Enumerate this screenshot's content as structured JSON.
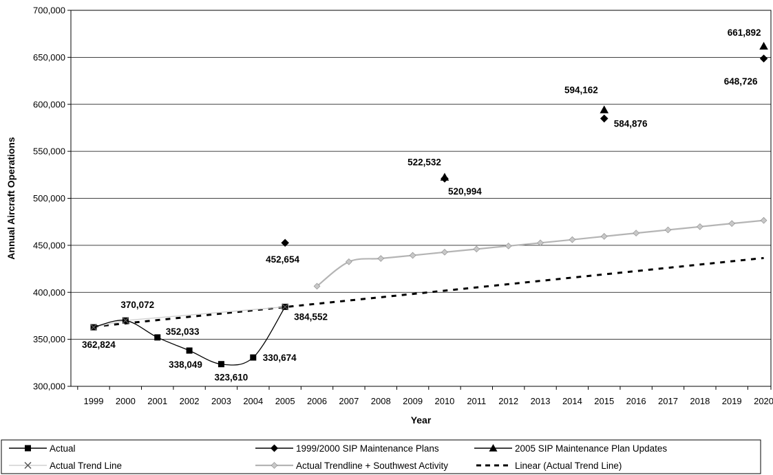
{
  "chart_data": {
    "type": "line",
    "title": "",
    "xlabel": "Year",
    "ylabel": "Annual Aircraft Operations",
    "xlim": [
      1999,
      2020
    ],
    "ylim": [
      300000,
      700000
    ],
    "y_ticks": [
      300000,
      350000,
      400000,
      450000,
      500000,
      550000,
      600000,
      650000,
      700000
    ],
    "y_tick_labels": [
      "300,000",
      "350,000",
      "400,000",
      "450,000",
      "500,000",
      "550,000",
      "600,000",
      "650,000",
      "700,000"
    ],
    "categories": [
      "1999",
      "2000",
      "2001",
      "2002",
      "2003",
      "2004",
      "2005",
      "2006",
      "2007",
      "2008",
      "2009",
      "2010",
      "2011",
      "2012",
      "2013",
      "2014",
      "2015",
      "2016",
      "2017",
      "2018",
      "2019",
      "2020"
    ],
    "grid": "horizontal",
    "legend_position": "bottom",
    "series": [
      {
        "name": "Actual",
        "color": "#000000",
        "marker": "square",
        "x": [
          1999,
          2000,
          2001,
          2002,
          2003,
          2004,
          2005
        ],
        "y": [
          362824,
          370072,
          352033,
          338049,
          323610,
          330674,
          384552
        ],
        "labels": [
          "362,824",
          "370,072",
          "352,033",
          "338,049",
          "323,610",
          "330,674",
          "384,552"
        ]
      },
      {
        "name": "1999/2000 SIP Maintenance Plans",
        "color": "#000000",
        "marker": "diamond",
        "x": [
          2005,
          2010,
          2015,
          2020
        ],
        "y": [
          452654,
          520994,
          584876,
          648726
        ],
        "labels": [
          "452,654",
          "520,994",
          "584,876",
          "648,726"
        ]
      },
      {
        "name": "2005 SIP Maintenance Plan Updates",
        "color": "#000000",
        "marker": "triangle",
        "x": [
          2010,
          2015,
          2020
        ],
        "y": [
          522532,
          594162,
          661892
        ],
        "labels": [
          "522,532",
          "594,162",
          "661,892"
        ]
      },
      {
        "name": "Actual Trend Line",
        "color": "#c8c8c8",
        "marker": "x",
        "x": [
          1999,
          2000,
          2005
        ],
        "y": [
          362824,
          370072,
          384552
        ]
      },
      {
        "name": "Actual Trendline + Southwest Activity",
        "color": "#b4b4b4",
        "marker": "diamond",
        "x": [
          2006,
          2007,
          2008,
          2009,
          2010,
          2011,
          2012,
          2013,
          2014,
          2015,
          2016,
          2017,
          2018,
          2019,
          2020
        ],
        "y": [
          406500,
          432500,
          436000,
          439300,
          442700,
          446000,
          449300,
          452600,
          456000,
          459500,
          463000,
          466400,
          469800,
          473200,
          476500
        ]
      },
      {
        "name": "Linear (Actual Trend Line)",
        "color": "#000000",
        "marker": "none",
        "dash": "dashed",
        "x": [
          1999,
          2020
        ],
        "y": [
          363500,
          436500
        ]
      }
    ]
  }
}
